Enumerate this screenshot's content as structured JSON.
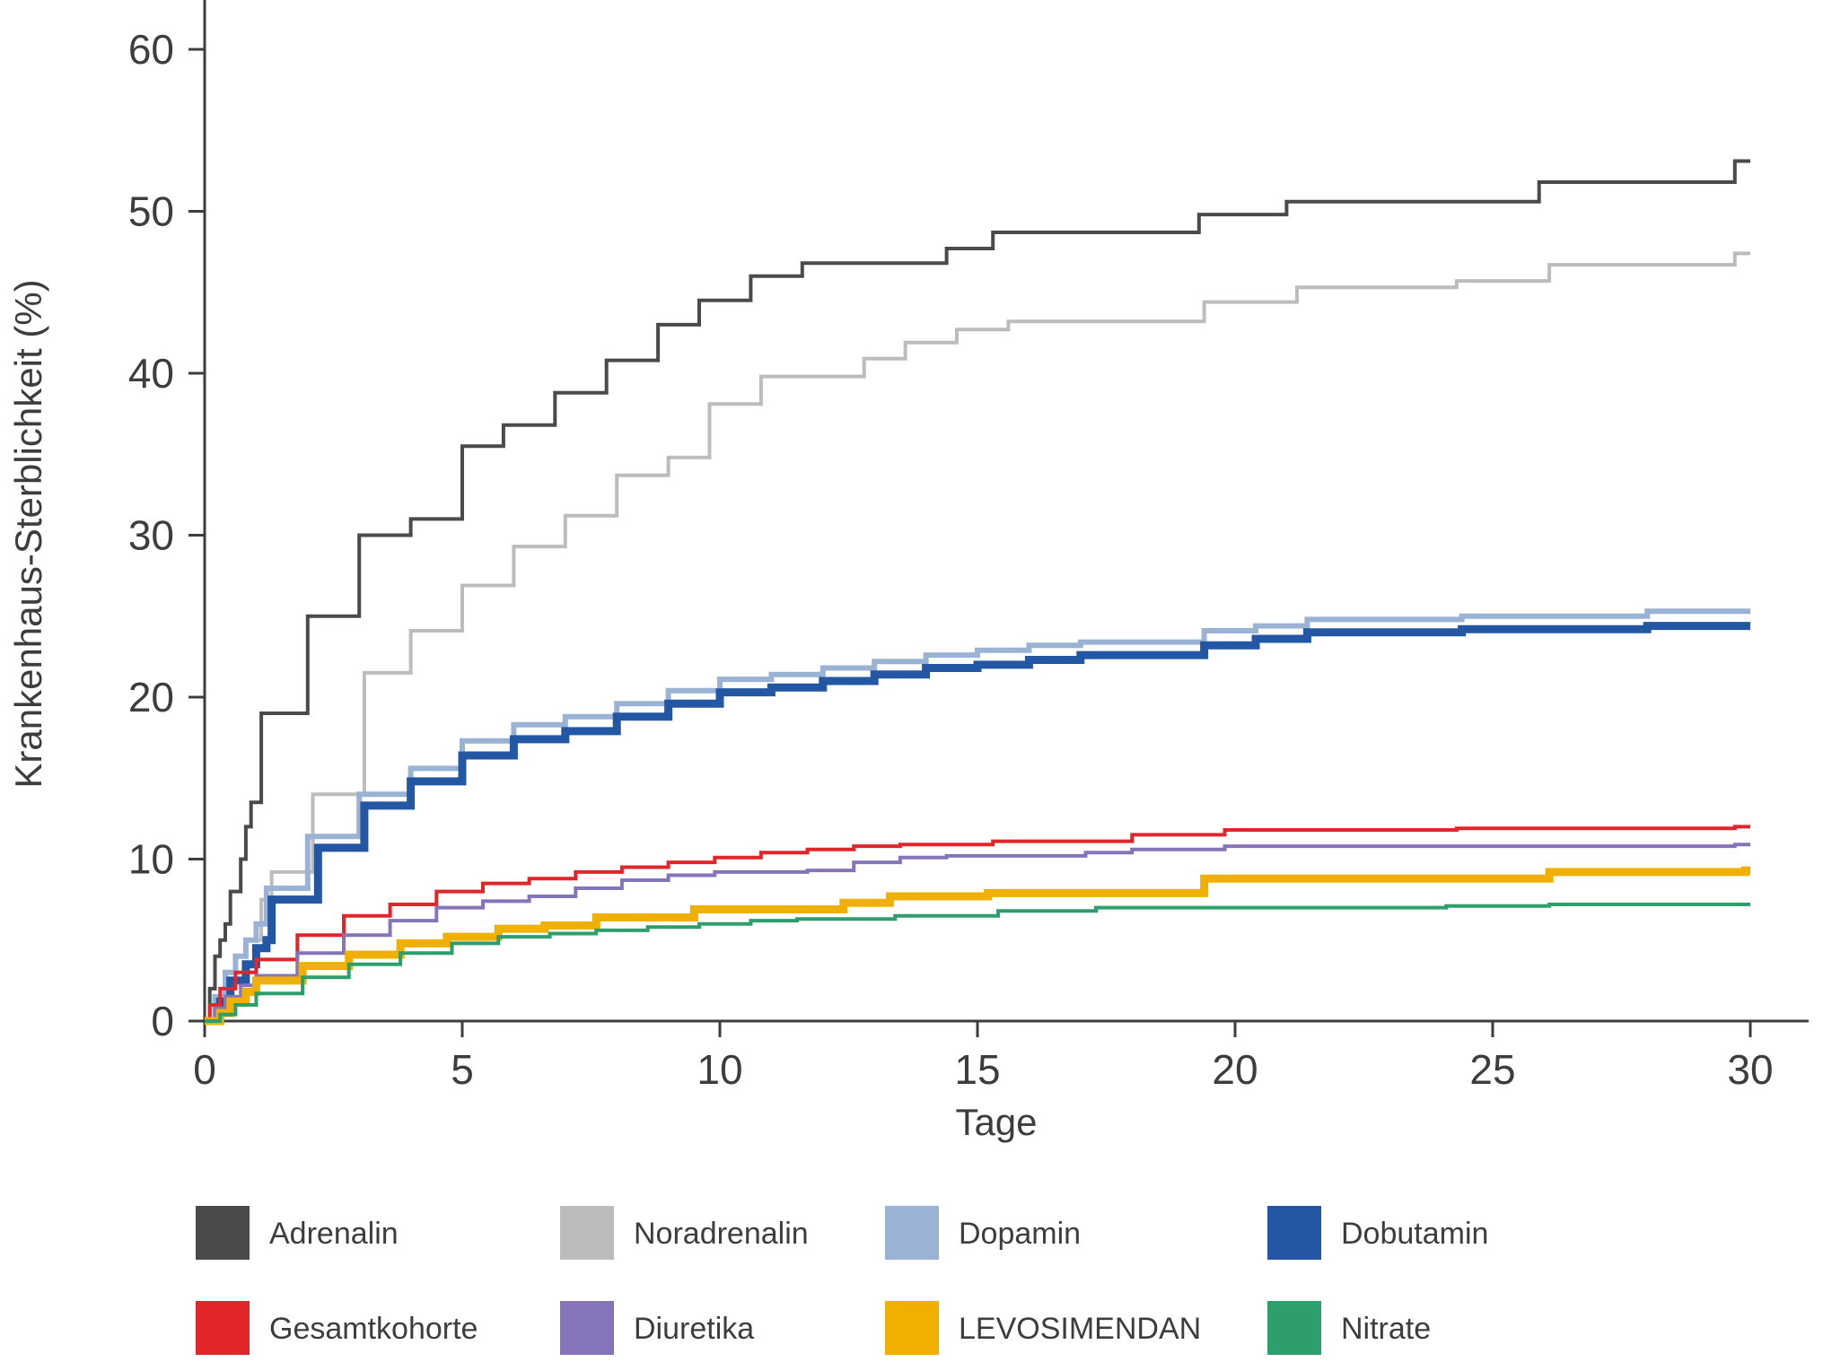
{
  "chart_data": {
    "type": "line",
    "title": "",
    "xlabel": "Tage",
    "ylabel": "Krankenhaus-Sterblichkeit (%)",
    "xlim": [
      0,
      30
    ],
    "ylim": [
      0,
      60
    ],
    "x_ticks": [
      0,
      5,
      10,
      15,
      20,
      25,
      30
    ],
    "y_ticks": [
      0,
      10,
      20,
      30,
      40,
      50,
      60
    ],
    "grid": false,
    "legend_placement": "bottom",
    "series": [
      {
        "name": "Adrenalin",
        "color": "#4a4a4a",
        "line_width": "thin",
        "points": [
          [
            0,
            0
          ],
          [
            0.1,
            2
          ],
          [
            0.2,
            4
          ],
          [
            0.3,
            5
          ],
          [
            0.4,
            6
          ],
          [
            0.5,
            8
          ],
          [
            0.7,
            10
          ],
          [
            0.8,
            12
          ],
          [
            0.9,
            13.5
          ],
          [
            1.1,
            19
          ],
          [
            2,
            25
          ],
          [
            3,
            30
          ],
          [
            4,
            31
          ],
          [
            5,
            35.5
          ],
          [
            5.8,
            36.8
          ],
          [
            6.8,
            38.8
          ],
          [
            7.8,
            40.8
          ],
          [
            8.8,
            43
          ],
          [
            9.6,
            44.5
          ],
          [
            10.6,
            46
          ],
          [
            11.6,
            46.8
          ],
          [
            12.6,
            46.8
          ],
          [
            14.4,
            47.7
          ],
          [
            15.3,
            48.7
          ],
          [
            17.3,
            48.7
          ],
          [
            19.3,
            49.8
          ],
          [
            21,
            50.6
          ],
          [
            24,
            50.6
          ],
          [
            25.9,
            51.8
          ],
          [
            29.7,
            53.1
          ],
          [
            30,
            53.1
          ]
        ]
      },
      {
        "name": "Noradrenalin",
        "color": "#bcbcbc",
        "line_width": "thin",
        "points": [
          [
            0,
            0
          ],
          [
            0.2,
            1
          ],
          [
            0.4,
            2.5
          ],
          [
            0.6,
            4
          ],
          [
            0.8,
            5
          ],
          [
            1.1,
            7.5
          ],
          [
            1.3,
            9.2
          ],
          [
            2.1,
            14
          ],
          [
            3.1,
            21.5
          ],
          [
            4,
            24.1
          ],
          [
            5,
            26.9
          ],
          [
            6,
            29.3
          ],
          [
            7,
            31.2
          ],
          [
            8,
            33.7
          ],
          [
            9,
            34.8
          ],
          [
            9.8,
            38.1
          ],
          [
            10.8,
            39.8
          ],
          [
            11.8,
            39.8
          ],
          [
            12.8,
            40.9
          ],
          [
            13.6,
            41.9
          ],
          [
            14.6,
            42.7
          ],
          [
            15.6,
            43.2
          ],
          [
            17.5,
            43.2
          ],
          [
            19.4,
            44.4
          ],
          [
            21.2,
            45.3
          ],
          [
            24.3,
            45.7
          ],
          [
            26.1,
            46.7
          ],
          [
            29.7,
            47.4
          ],
          [
            30,
            47.4
          ]
        ]
      },
      {
        "name": "Dopamin",
        "color": "#9ab3d5",
        "line_width": "medium",
        "points": [
          [
            0,
            0
          ],
          [
            0.2,
            1.5
          ],
          [
            0.4,
            3
          ],
          [
            0.6,
            4
          ],
          [
            0.8,
            5
          ],
          [
            1,
            6
          ],
          [
            1.2,
            8.2
          ],
          [
            2,
            11.4
          ],
          [
            3,
            14
          ],
          [
            4,
            15.6
          ],
          [
            5,
            17.3
          ],
          [
            6,
            18.3
          ],
          [
            7,
            18.8
          ],
          [
            8,
            19.6
          ],
          [
            9,
            20.4
          ],
          [
            10,
            21.1
          ],
          [
            11,
            21.4
          ],
          [
            12,
            21.8
          ],
          [
            13,
            22.2
          ],
          [
            14,
            22.6
          ],
          [
            15,
            22.9
          ],
          [
            16,
            23.2
          ],
          [
            17,
            23.4
          ],
          [
            19.4,
            24.1
          ],
          [
            20.4,
            24.4
          ],
          [
            21.4,
            24.8
          ],
          [
            24.4,
            25
          ],
          [
            28,
            25.3
          ],
          [
            30,
            25.3
          ]
        ]
      },
      {
        "name": "Dobutamin",
        "color": "#2457a3",
        "line_width": "thick",
        "points": [
          [
            0,
            0
          ],
          [
            0.3,
            1.2
          ],
          [
            0.5,
            2.5
          ],
          [
            0.8,
            3.5
          ],
          [
            1,
            4.5
          ],
          [
            1.2,
            5
          ],
          [
            1.3,
            7.5
          ],
          [
            2.2,
            10.7
          ],
          [
            3.1,
            13.3
          ],
          [
            4,
            14.8
          ],
          [
            5,
            16.4
          ],
          [
            6,
            17.4
          ],
          [
            7,
            17.9
          ],
          [
            8,
            18.8
          ],
          [
            9,
            19.6
          ],
          [
            10,
            20.3
          ],
          [
            11,
            20.6
          ],
          [
            12,
            21
          ],
          [
            13,
            21.4
          ],
          [
            14,
            21.8
          ],
          [
            15,
            22
          ],
          [
            16,
            22.3
          ],
          [
            17,
            22.6
          ],
          [
            19.4,
            23.2
          ],
          [
            20.4,
            23.6
          ],
          [
            21.4,
            24
          ],
          [
            24.4,
            24.2
          ],
          [
            28,
            24.4
          ],
          [
            30,
            24.4
          ]
        ]
      },
      {
        "name": "Gesamtkohorte",
        "color": "#e0262a",
        "line_width": "thin",
        "points": [
          [
            0,
            0
          ],
          [
            0.1,
            1
          ],
          [
            0.3,
            2
          ],
          [
            0.6,
            3
          ],
          [
            1,
            3.8
          ],
          [
            1.8,
            5.3
          ],
          [
            2.7,
            6.5
          ],
          [
            3.6,
            7.2
          ],
          [
            4.5,
            8
          ],
          [
            5.4,
            8.5
          ],
          [
            6.3,
            8.8
          ],
          [
            7.2,
            9.2
          ],
          [
            8.1,
            9.5
          ],
          [
            9,
            9.8
          ],
          [
            9.9,
            10.1
          ],
          [
            10.8,
            10.4
          ],
          [
            11.7,
            10.6
          ],
          [
            12.6,
            10.8
          ],
          [
            13.5,
            10.9
          ],
          [
            15.3,
            11.1
          ],
          [
            18,
            11.5
          ],
          [
            19.8,
            11.8
          ],
          [
            24.3,
            11.9
          ],
          [
            29.7,
            12
          ],
          [
            30,
            12
          ]
        ]
      },
      {
        "name": "Diuretika",
        "color": "#8674b9",
        "line_width": "thin",
        "points": [
          [
            0,
            0
          ],
          [
            0.2,
            0.8
          ],
          [
            0.4,
            1.5
          ],
          [
            0.7,
            2.2
          ],
          [
            1,
            2.8
          ],
          [
            1.8,
            4.2
          ],
          [
            2.7,
            5.3
          ],
          [
            3.6,
            6.2
          ],
          [
            4.5,
            7
          ],
          [
            5.4,
            7.4
          ],
          [
            6.3,
            7.7
          ],
          [
            7.2,
            8.2
          ],
          [
            8.1,
            8.7
          ],
          [
            9,
            9
          ],
          [
            9.9,
            9.2
          ],
          [
            11.7,
            9.3
          ],
          [
            12.6,
            9.8
          ],
          [
            13.5,
            10.1
          ],
          [
            14.4,
            10.2
          ],
          [
            17.1,
            10.4
          ],
          [
            18,
            10.6
          ],
          [
            19.8,
            10.8
          ],
          [
            29.7,
            10.9
          ],
          [
            30,
            10.9
          ]
        ]
      },
      {
        "name": "LEVOSIMENDAN",
        "color": "#f0b000",
        "line_width": "thick",
        "points": [
          [
            0,
            0
          ],
          [
            0.3,
            0.5
          ],
          [
            0.5,
            1.2
          ],
          [
            0.8,
            1.8
          ],
          [
            1,
            2.5
          ],
          [
            1.9,
            3.4
          ],
          [
            2.8,
            4.1
          ],
          [
            3.8,
            4.8
          ],
          [
            4.7,
            5.2
          ],
          [
            5.7,
            5.7
          ],
          [
            6.6,
            5.9
          ],
          [
            7.6,
            6.4
          ],
          [
            8.5,
            6.4
          ],
          [
            9.5,
            6.9
          ],
          [
            11.4,
            6.9
          ],
          [
            12.4,
            7.3
          ],
          [
            13.3,
            7.7
          ],
          [
            15.2,
            7.9
          ],
          [
            16.2,
            7.9
          ],
          [
            19.4,
            8.8
          ],
          [
            26.1,
            9.2
          ],
          [
            29.9,
            9.3
          ],
          [
            30,
            9.3
          ]
        ]
      },
      {
        "name": "Nitrate",
        "color": "#2e9e6b",
        "line_width": "thin",
        "points": [
          [
            0,
            0
          ],
          [
            0.3,
            0.4
          ],
          [
            0.6,
            1
          ],
          [
            1,
            1.7
          ],
          [
            1.9,
            2.7
          ],
          [
            2.8,
            3.5
          ],
          [
            3.8,
            4.2
          ],
          [
            4.8,
            4.8
          ],
          [
            5.7,
            5.2
          ],
          [
            6.7,
            5.4
          ],
          [
            7.6,
            5.6
          ],
          [
            8.6,
            5.8
          ],
          [
            9.6,
            6
          ],
          [
            10.6,
            6.2
          ],
          [
            11.5,
            6.3
          ],
          [
            13.4,
            6.5
          ],
          [
            15.4,
            6.8
          ],
          [
            17.3,
            7
          ],
          [
            24.1,
            7.1
          ],
          [
            26.1,
            7.2
          ],
          [
            30,
            7.2
          ]
        ]
      }
    ]
  }
}
